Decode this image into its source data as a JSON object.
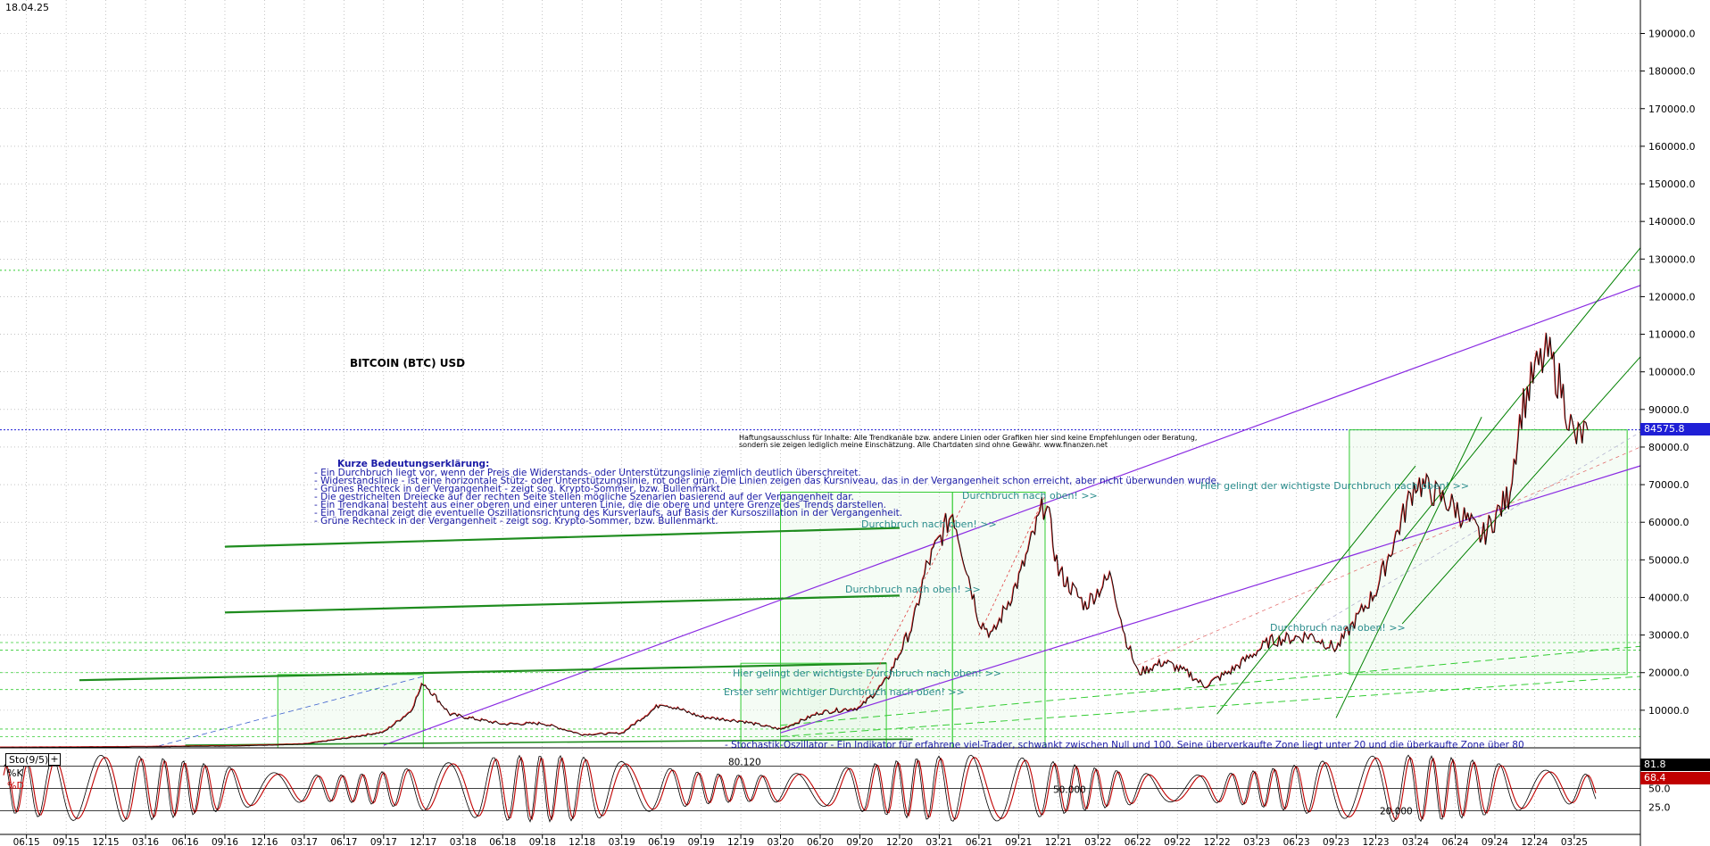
{
  "header": {
    "date": "18.04.25"
  },
  "chart_data": {
    "type": "line",
    "title": "BITCOIN (BTC) USD",
    "y_axis": {
      "ticks": [
        "190000.0",
        "180000.0",
        "170000.0",
        "160000.0",
        "150000.0",
        "140000.0",
        "130000.0",
        "120000.0",
        "110000.0",
        "100000.0",
        "90000.0",
        "80000.0",
        "70000.0",
        "60000.0",
        "50000.0",
        "40000.0",
        "30000.0",
        "20000.0",
        "10000.0"
      ],
      "tick_values": [
        190000,
        180000,
        170000,
        160000,
        150000,
        140000,
        130000,
        120000,
        110000,
        100000,
        90000,
        80000,
        70000,
        60000,
        50000,
        40000,
        30000,
        20000,
        10000
      ],
      "range": [
        0,
        197000
      ]
    },
    "x_axis": {
      "ticks": [
        "06.15",
        "09.15",
        "12.15",
        "03.16",
        "06.16",
        "09.16",
        "12.16",
        "03.17",
        "06.17",
        "09.17",
        "12.17",
        "03.18",
        "06.18",
        "09.18",
        "12.18",
        "03.19",
        "06.19",
        "09.19",
        "12.19",
        "03.20",
        "06.20",
        "09.20",
        "12.20",
        "03.21",
        "06.21",
        "09.21",
        "12.21",
        "03.22",
        "06.22",
        "09.22",
        "12.22",
        "03.23",
        "06.23",
        "09.23",
        "12.23",
        "03.24",
        "06.24",
        "09.24",
        "12.24",
        "03.25"
      ],
      "range": [
        "2015-04",
        "2025-08"
      ]
    },
    "last_price": "84575.8",
    "series": [
      {
        "points": [
          [
            "2015-04",
            230
          ],
          [
            "2015-10",
            300
          ],
          [
            "2016-04",
            430
          ],
          [
            "2016-10",
            640
          ],
          [
            "2017-03",
            1100
          ],
          [
            "2017-06",
            2600
          ],
          [
            "2017-09",
            4300
          ],
          [
            "2017-11",
            9800
          ],
          [
            "2017-12",
            17500
          ],
          [
            "2018-02",
            9000
          ],
          [
            "2018-06",
            6400
          ],
          [
            "2018-09",
            6600
          ],
          [
            "2018-12",
            3600
          ],
          [
            "2019-03",
            4000
          ],
          [
            "2019-06",
            12000
          ],
          [
            "2019-09",
            8300
          ],
          [
            "2019-12",
            7200
          ],
          [
            "2020-03",
            5000
          ],
          [
            "2020-06",
            9500
          ],
          [
            "2020-09",
            10800
          ],
          [
            "2020-11",
            18000
          ],
          [
            "2021-01",
            33000
          ],
          [
            "2021-02",
            48000
          ],
          [
            "2021-04",
            63000
          ],
          [
            "2021-06",
            34000
          ],
          [
            "2021-07",
            30000
          ],
          [
            "2021-09",
            45000
          ],
          [
            "2021-11",
            66000
          ],
          [
            "2021-12",
            47000
          ],
          [
            "2022-02",
            38000
          ],
          [
            "2022-04",
            46000
          ],
          [
            "2022-05",
            30000
          ],
          [
            "2022-06",
            20000
          ],
          [
            "2022-08",
            23000
          ],
          [
            "2022-10",
            19500
          ],
          [
            "2022-11",
            16500
          ],
          [
            "2023-01",
            20500
          ],
          [
            "2023-04",
            28500
          ],
          [
            "2023-07",
            30000
          ],
          [
            "2023-09",
            26500
          ],
          [
            "2023-12",
            42000
          ],
          [
            "2024-03",
            71000
          ],
          [
            "2024-06",
            64000
          ],
          [
            "2024-08",
            56000
          ],
          [
            "2024-10",
            67000
          ],
          [
            "2024-11",
            90000
          ],
          [
            "2024-12",
            100000
          ],
          [
            "2025-01",
            105000
          ],
          [
            "2025-02",
            96000
          ],
          [
            "2025-03",
            82000
          ],
          [
            "2025-04",
            84575
          ]
        ]
      }
    ],
    "reference_lines": {
      "blue_dotted": 84575.8,
      "green_dotted": 127000
    },
    "annotations": [
      "Durchbruch nach oben! >>",
      "Durchbruch nach oben! >>",
      "Durchbruch nach oben! >>",
      "Durchbruch nach oben! >>",
      "Hier gelingt der wichtigste Durchbruch nach oben! >>",
      "Hier gelingt der wichtigste Durchbruch nach oben! >>",
      "Erster sehr wichtiger Durchbruch nach oben! >>"
    ],
    "legend_title": "Kurze Bedeutungserklärung:",
    "legend_lines": [
      "- Ein Durchbruch liegt vor, wenn der Preis die Widerstands- oder Unterstützungslinie ziemlich deutlich überschreitet.",
      "- Widerstandslinie - ist eine horizontale Stütz- oder Unterstützungslinie, rot oder grün. Die Linien zeigen das Kursniveau, das in der Vergangenheit schon erreicht, aber nicht überwunden wurde.",
      "- Grünes Rechteck in der Vergangenheit - zeigt sog. Krypto-Sommer, bzw. Bullenmarkt.",
      "- Die gestrichelten Dreiecke auf der rechten Seite stellen mögliche Szenarien basierend auf der Vergangenheit dar.",
      "- Ein Trendkanal besteht aus einer oberen und einer unteren Linie, die die obere und untere Grenze des Trends darstellen.",
      "- Ein Trendkanal zeigt die eventuelle Oszillationsrichtung des Kursverlaufs, auf Basis der Kursoszillation in der Vergangenheit.",
      "- Grüne Rechteck in der Vergangenheit - zeigt sog. Krypto-Sommer, bzw. Bullenmarkt."
    ],
    "disclaimer_lines": [
      "Haftungsausschluss für Inhalte: Alle Trendkanäle bzw. andere Linien oder Grafiken hier sind keine Empfehlungen oder Beratung,",
      "sondern sie zeigen lediglich meine Einschätzung. Alle Chartdaten sind ohne Gewähr.  www.finanzen.net"
    ],
    "indicator": {
      "name": "Sto(9/5)",
      "k_label": "%K",
      "d_label": "%D",
      "note": "- Stochastik-Oszillator - Ein Indikator für erfahrene viel-Trader, schwankt zwischen Null und 100. Seine überverkaufte Zone liegt unter 20 und die überkaufte Zone über 80",
      "levels_labels": [
        "80.120",
        "50.000",
        "20.000"
      ],
      "y_ticks": [
        "50.0",
        "25.0"
      ],
      "k_value": "81.8",
      "d_value": "68.4"
    }
  },
  "colors": {
    "price": "#000000",
    "price_up": "#cc0000",
    "grid": "#a0a0a0",
    "trend_purple": "#8a2be2",
    "trend_green": "#008000",
    "support_green": "#1e8c1e",
    "rect_green": "#33cc33",
    "blue_level": "#1f1fd6",
    "label_teal": "#2a8c8c",
    "axis_bg": "#ffffff",
    "k_box": "#000000",
    "d_box": "#c00000"
  }
}
